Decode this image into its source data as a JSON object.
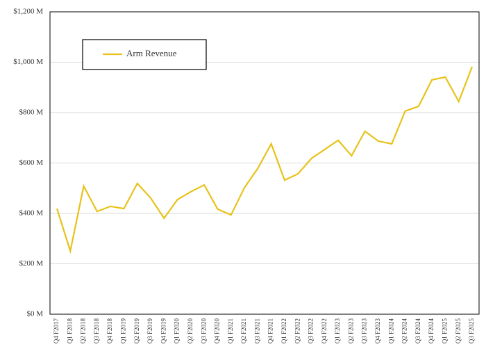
{
  "chart_data": {
    "type": "line",
    "categories": [
      "Q4 F2017",
      "Q1 F2018",
      "Q2 F2018",
      "Q3 F2018",
      "Q4 F2018",
      "Q1 F2019",
      "Q2 F2019",
      "Q3 F2019",
      "Q4 F2019",
      "Q1 F2020",
      "Q2 F2020",
      "Q3 F2020",
      "Q4 F2020",
      "Q1 F2021",
      "Q2 F2021",
      "Q3 F2021",
      "Q4 F2021",
      "Q1 F2022",
      "Q2 F2022",
      "Q3 F2022",
      "Q4 F2022",
      "Q1 F2023",
      "Q2 F2023",
      "Q3 F2023",
      "Q4 F2023",
      "Q1 F2024",
      "Q2 F2024",
      "Q3 F2024",
      "Q4 F2024",
      "Q1 F2025",
      "Q2 F2025",
      "Q3 F2025"
    ],
    "series": [
      {
        "name": "Arm Revenue",
        "color": "#e8c21a",
        "values": [
          419,
          251,
          508,
          408,
          428,
          419,
          519,
          461,
          381,
          455,
          486,
          513,
          417,
          394,
          502,
          579,
          676,
          532,
          557,
          618,
          654,
          690,
          629,
          726,
          687,
          676,
          806,
          825,
          930,
          941,
          844,
          982
        ]
      }
    ],
    "ylim": [
      0,
      1200
    ],
    "yticks": [
      {
        "value": 0,
        "label": "$0 M"
      },
      {
        "value": 200,
        "label": "$200 M"
      },
      {
        "value": 400,
        "label": "$400 M"
      },
      {
        "value": 600,
        "label": "$600 M"
      },
      {
        "value": 800,
        "label": "$800 M"
      },
      {
        "value": 1000,
        "label": "$1,000 M"
      },
      {
        "value": 1200,
        "label": "$1,200 M"
      }
    ],
    "grid": true,
    "legend": "upper left"
  }
}
